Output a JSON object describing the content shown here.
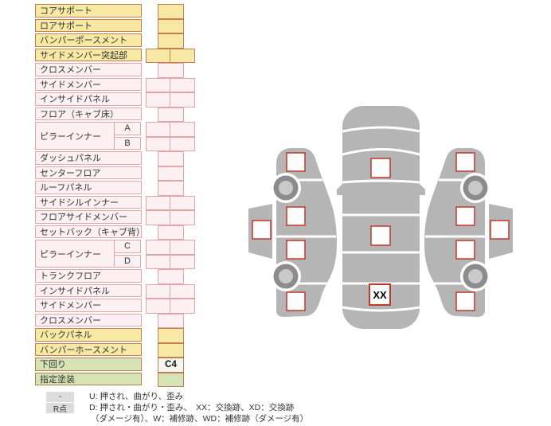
{
  "table": {
    "rows": [
      {
        "label": "コアサポート",
        "type": "yellow",
        "cells": "single"
      },
      {
        "label": "ロアサポート",
        "type": "yellow",
        "cells": "single"
      },
      {
        "label": "バンパーポースメント",
        "type": "yellow",
        "cells": "single"
      },
      {
        "label": "サイドメンバー突起部",
        "type": "yellow",
        "cells": "double"
      },
      {
        "label": "クロスメンバー",
        "type": "pink",
        "cells": "single"
      },
      {
        "label": "サイドメンバー",
        "type": "pink",
        "cells": "double"
      },
      {
        "label": "インサイドパネル",
        "type": "pink",
        "cells": "double"
      },
      {
        "label": "フロア（キャブ床）",
        "type": "pink",
        "cells": "single"
      },
      {
        "label": "ピラーインナー",
        "type": "pink",
        "cells": "double",
        "span": 2,
        "sub": "A"
      },
      {
        "label": "",
        "type": "pink",
        "cells": "double",
        "sub": "B"
      },
      {
        "label": "ダッシュパネル",
        "type": "pink",
        "cells": "single"
      },
      {
        "label": "センターフロア",
        "type": "pink",
        "cells": "single"
      },
      {
        "label": "ルーフパネル",
        "type": "pink",
        "cells": "single"
      },
      {
        "label": "サイドシルインナー",
        "type": "pink",
        "cells": "double"
      },
      {
        "label": "フロアサイドメンバー",
        "type": "pink",
        "cells": "double"
      },
      {
        "label": "セットバック（キャブ背）",
        "type": "pink",
        "cells": "single"
      },
      {
        "label": "ピラーインナー",
        "type": "pink",
        "cells": "double",
        "span": 2,
        "sub": "C"
      },
      {
        "label": "",
        "type": "pink",
        "cells": "double",
        "sub": "D"
      },
      {
        "label": "トランクフロア",
        "type": "pink",
        "cells": "single"
      },
      {
        "label": "インサイドパネル",
        "type": "pink",
        "cells": "double"
      },
      {
        "label": "サイドメンバー",
        "type": "pink",
        "cells": "double"
      },
      {
        "label": "クロスメンバー",
        "type": "pink",
        "cells": "single"
      },
      {
        "label": "バックパネル",
        "type": "yellow",
        "cells": "single"
      },
      {
        "label": "バンパーホースメント",
        "type": "yellow",
        "cells": "single"
      },
      {
        "label": "下回り",
        "type": "green",
        "cells": "single",
        "value": "C4",
        "cell_bg": "light"
      },
      {
        "label": "指定塗装",
        "type": "green",
        "cells": "single",
        "cell_bg": "green"
      }
    ]
  },
  "diagram": {
    "marker": "XX"
  },
  "legend": {
    "rows": [
      {
        "chip": "-",
        "text": "U: 押され、曲がり、歪み"
      },
      {
        "chip": "R点",
        "text": "D: 押され・曲がり・歪み、　XX：交換跡、XD：交換跡"
      },
      {
        "chip": "",
        "text": "（ダメージ有）、W：補修跡、WD：補修跡（ダメージ有）"
      }
    ]
  },
  "colors": {
    "page": "#ffffff",
    "yellow_fill": "#f7e9a4",
    "yellow_border": "#c57e52",
    "pink_fill": "#fcf0f2",
    "pink_border": "#e2a5a5",
    "green_fill": "#d6e3b4",
    "green_border": "#ba7f55",
    "light_fill": "#f4f7ec",
    "text": "#333333",
    "value": "#101010",
    "chip": "#dcdcdc",
    "car": "#b5b5b5",
    "wheel_ring": "#8c8c8c",
    "wheel_hub": "#c9c9c9",
    "square_border": "#c0392b"
  }
}
